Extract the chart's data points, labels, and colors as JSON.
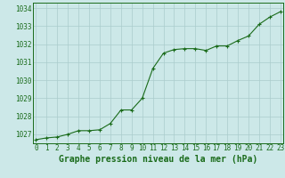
{
  "x": [
    0,
    1,
    2,
    3,
    4,
    5,
    6,
    7,
    8,
    9,
    10,
    11,
    12,
    13,
    14,
    15,
    16,
    17,
    18,
    19,
    20,
    21,
    22,
    23
  ],
  "y": [
    1026.7,
    1026.8,
    1026.85,
    1027.0,
    1027.2,
    1027.2,
    1027.25,
    1027.6,
    1028.35,
    1028.35,
    1029.0,
    1030.65,
    1031.5,
    1031.7,
    1031.75,
    1031.75,
    1031.65,
    1031.9,
    1031.9,
    1032.2,
    1032.45,
    1033.1,
    1033.5,
    1033.8
  ],
  "line_color": "#1a6b1a",
  "marker": "+",
  "marker_size": 3.5,
  "marker_linewidth": 0.8,
  "line_width": 0.8,
  "background_color": "#cce8e8",
  "grid_color": "#aacccc",
  "grid_linewidth": 0.5,
  "title": "Graphe pression niveau de la mer (hPa)",
  "title_color": "#1a6b1a",
  "title_fontsize": 7.0,
  "title_fontweight": "bold",
  "ytick_labels": [
    "1027",
    "1028",
    "1029",
    "1030",
    "1031",
    "1032",
    "1033",
    "1034"
  ],
  "yticks": [
    1027,
    1028,
    1029,
    1030,
    1031,
    1032,
    1033,
    1034
  ],
  "xticks": [
    0,
    1,
    2,
    3,
    4,
    5,
    6,
    7,
    8,
    9,
    10,
    11,
    12,
    13,
    14,
    15,
    16,
    17,
    18,
    19,
    20,
    21,
    22,
    23
  ],
  "spine_color": "#1a6b1a",
  "tick_color": "#1a6b1a",
  "tick_fontsize": 5.5,
  "ylim_min": 1026.5,
  "ylim_max": 1034.3,
  "xlim_min": -0.3,
  "xlim_max": 23.3
}
